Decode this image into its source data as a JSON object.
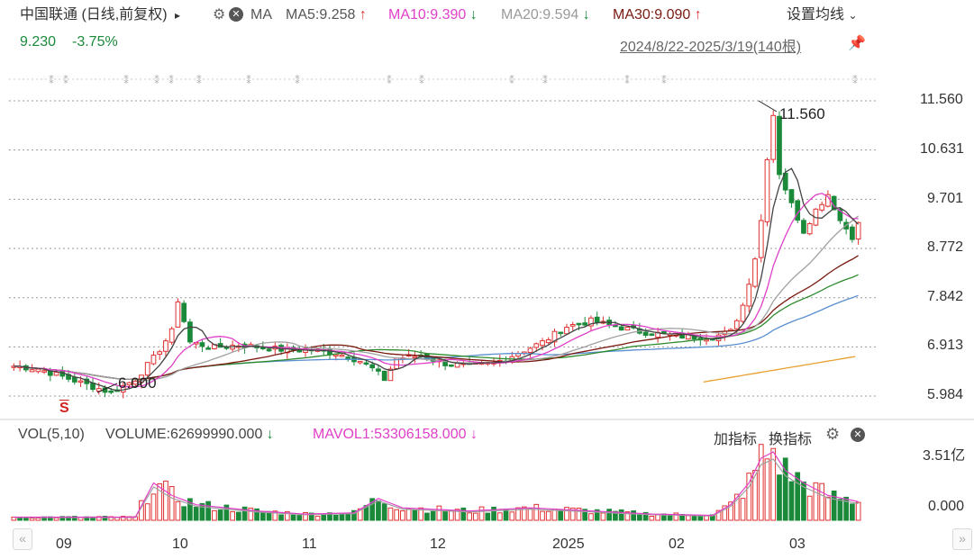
{
  "header": {
    "title": "中国联通 (日线,前复权)",
    "title_arrow": "▸",
    "ma_label": "MA",
    "ma5": "MA5:9.258",
    "ma5_arrow": "↑",
    "ma10": "MA10:9.390",
    "ma10_arrow": "↓",
    "ma20": "MA20:9.594",
    "ma20_arrow": "↓",
    "ma30": "MA30:9.090",
    "ma30_arrow": "↑",
    "settings": "设置均线",
    "price": "9.230",
    "change": "-3.75%",
    "range": "2024/8/22-2025/3/19(140根)"
  },
  "volume_header": {
    "label": "VOL(5,10)",
    "volume": "VOLUME:62699990.000",
    "volume_arrow": "↓",
    "mavol": "MAVOL1:53306158.000",
    "mavol_arrow": "↓",
    "add_indicator": "加指标",
    "switch_indicator": "换指标"
  },
  "colors": {
    "up": "#e03030",
    "down": "#1a8a3a",
    "ma5": "#444444",
    "ma10": "#e040c8",
    "ma20": "#a0a0a0",
    "ma30": "#7a1a10",
    "ma60": "#2e8b2e",
    "ma120": "#5a8fd0",
    "ma250": "#e8a030"
  },
  "chart_data": {
    "type": "candlestick",
    "y_ticks": [
      "11.560",
      "10.631",
      "9.701",
      "8.772",
      "7.842",
      "6.913",
      "5.984"
    ],
    "ylim": [
      5.984,
      11.56
    ],
    "x_ticks": [
      "09",
      "10",
      "11",
      "12",
      "2025",
      "02",
      "03"
    ],
    "annotations": {
      "high": "11.560",
      "low": "6.000",
      "signal": "S"
    },
    "volume_ticks": [
      "3.51亿",
      "0.000"
    ],
    "candles_per_day": 140,
    "close_path": [
      [
        0,
        6.55
      ],
      [
        4,
        6.5
      ],
      [
        8,
        6.35
      ],
      [
        12,
        6.2
      ],
      [
        16,
        6.05
      ],
      [
        20,
        6.3
      ],
      [
        23,
        6.7
      ],
      [
        26,
        7.2
      ],
      [
        27,
        7.8
      ],
      [
        29,
        7.0
      ],
      [
        33,
        6.9
      ],
      [
        37,
        6.95
      ],
      [
        41,
        6.9
      ],
      [
        45,
        6.85
      ],
      [
        49,
        6.85
      ],
      [
        53,
        6.8
      ],
      [
        57,
        6.65
      ],
      [
        59,
        6.5
      ],
      [
        61,
        6.3
      ],
      [
        63,
        6.7
      ],
      [
        67,
        6.75
      ],
      [
        71,
        6.6
      ],
      [
        75,
        6.55
      ],
      [
        79,
        6.6
      ],
      [
        83,
        6.8
      ],
      [
        87,
        7.0
      ],
      [
        91,
        7.3
      ],
      [
        95,
        7.4
      ],
      [
        99,
        7.3
      ],
      [
        103,
        7.2
      ],
      [
        107,
        7.15
      ],
      [
        111,
        7.1
      ],
      [
        115,
        7.1
      ],
      [
        118,
        7.2
      ],
      [
        120,
        7.7
      ],
      [
        122,
        8.6
      ],
      [
        123,
        9.3
      ],
      [
        124,
        10.5
      ],
      [
        125,
        11.3
      ],
      [
        126,
        10.2
      ],
      [
        128,
        9.6
      ],
      [
        130,
        9.1
      ],
      [
        132,
        9.5
      ],
      [
        134,
        9.8
      ],
      [
        136,
        9.3
      ],
      [
        138,
        9.0
      ],
      [
        139,
        9.23
      ]
    ],
    "volume_path": [
      [
        0,
        0.05
      ],
      [
        20,
        0.05
      ],
      [
        23,
        0.6
      ],
      [
        26,
        0.4
      ],
      [
        30,
        0.25
      ],
      [
        40,
        0.15
      ],
      [
        48,
        0.1
      ],
      [
        56,
        0.12
      ],
      [
        60,
        0.35
      ],
      [
        64,
        0.2
      ],
      [
        75,
        0.15
      ],
      [
        85,
        0.2
      ],
      [
        95,
        0.15
      ],
      [
        105,
        0.1
      ],
      [
        115,
        0.08
      ],
      [
        118,
        0.25
      ],
      [
        121,
        0.6
      ],
      [
        123,
        1.0
      ],
      [
        125,
        1.1
      ],
      [
        127,
        0.8
      ],
      [
        130,
        0.6
      ],
      [
        134,
        0.4
      ],
      [
        139,
        0.3
      ]
    ]
  }
}
